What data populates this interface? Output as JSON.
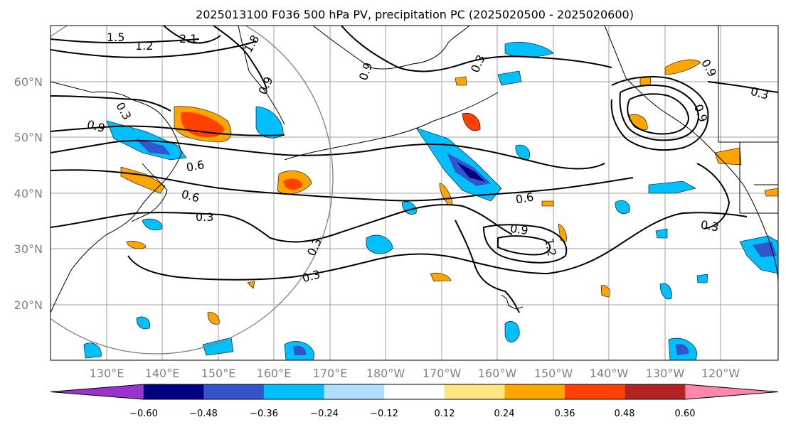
{
  "title": "2025013100 F036 500 hPa PV, precipitation PC (2025020500 - 2025020600)",
  "lat_labels": [
    "60°N",
    "50°N",
    "40°N",
    "30°N",
    "20°N"
  ],
  "lon_labels": [
    "130°E",
    "140°E",
    "150°E",
    "160°E",
    "170°E",
    "180°W",
    "170°W",
    "160°W",
    "150°W",
    "140°W",
    "130°W",
    "120°W"
  ],
  "contour_labels": [
    "1.5",
    "1.2",
    "2.1",
    "1.8",
    "0.9",
    "0.9",
    "0.3",
    "0.9",
    "0.6",
    "0.6",
    "0.3",
    "0.3",
    "0.3",
    "0.6",
    "0.9",
    "1.2",
    "0.3",
    "0.3",
    "0.9",
    "0.3",
    "0.9"
  ],
  "colorbar": {
    "tick_labels": [
      "−0.60",
      "−0.48",
      "−0.36",
      "−0.24",
      "−0.12",
      "0.12",
      "0.24",
      "0.36",
      "0.48",
      "0.60"
    ],
    "colors": [
      "#9933cc",
      "#000080",
      "#3355cc",
      "#00bfff",
      "#b0e0ff",
      "#ffffff",
      "#ffe680",
      "#ffa500",
      "#ff4000",
      "#b22222",
      "#ff88aa"
    ]
  },
  "colors": {
    "frame": "#000000",
    "grid": "#a0a0a0",
    "circle": "#808080",
    "neg_light": "#00bfff",
    "neg_mid": "#3355cc",
    "neg_dark": "#000080",
    "pos_light": "#ffe680",
    "pos_mid": "#ffa500",
    "pos_dark": "#ff4000"
  }
}
